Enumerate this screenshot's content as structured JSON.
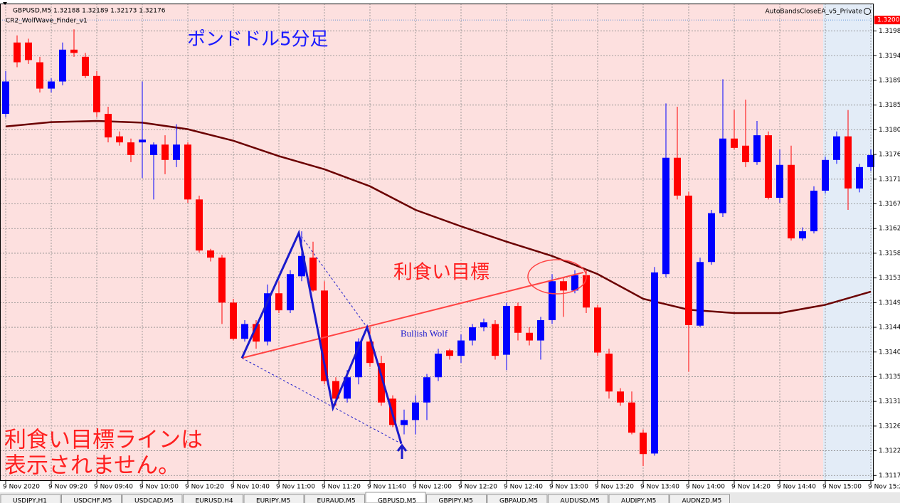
{
  "chart_data": {
    "type": "candlestick",
    "header": "GBPUSD,M5  1.32188 1.32189 1.32173 1.32176",
    "indicator_label": "CR2_WolfWave_Finder_v1",
    "ea_label": "AutoBandsCloseEA_v5_Private",
    "title": "ポンドドル5分足",
    "target_label": "利食い目標",
    "pattern_label": "Bullish Wolf",
    "note_lines": [
      "利食い目標ラインは",
      "表示されません。"
    ],
    "categories": [
      "9 Nov 2020",
      null,
      null,
      null,
      "9 Nov 09:20",
      null,
      null,
      null,
      "9 Nov 09:40",
      null,
      null,
      null,
      "9 Nov 10:00",
      null,
      null,
      null,
      "9 Nov 10:20",
      null,
      null,
      null,
      "9 Nov 10:40",
      null,
      null,
      null,
      "9 Nov 11:00",
      null,
      null,
      null,
      "9 Nov 11:20",
      null,
      null,
      null,
      "9 Nov 11:40",
      null,
      null,
      null,
      "9 Nov 12:00",
      null,
      null,
      null,
      "9 Nov 12:20",
      null,
      null,
      null,
      "9 Nov 12:40",
      null,
      null,
      null,
      "9 Nov 13:00",
      null,
      null,
      null,
      "9 Nov 13:20",
      null,
      null,
      null,
      "9 Nov 13:40",
      null,
      null,
      null,
      "9 Nov 14:00",
      null,
      null,
      null,
      "9 Nov 14:20",
      null,
      null,
      null,
      "9 Nov 14:40",
      null,
      null,
      null,
      "9 Nov 15:00",
      null,
      null,
      null,
      "9 Nov 15:2"
    ],
    "open": [
      1.31829,
      1.31959,
      1.31959,
      1.31923,
      1.31875,
      1.31888,
      1.31946,
      1.31933,
      1.31898,
      1.31829,
      1.31788,
      1.31777,
      1.31777,
      1.31754,
      1.31773,
      1.31745,
      1.31773,
      1.31673,
      1.3158,
      1.31567,
      1.31485,
      1.31419,
      1.31446,
      1.31414,
      1.31502,
      1.31471,
      1.31533,
      1.31567,
      1.31507,
      1.31342,
      1.3131,
      1.31349,
      1.31414,
      1.31375,
      1.3131,
      1.31262,
      1.31271,
      1.31303,
      1.31349,
      1.31398,
      1.31388,
      1.31416,
      1.3144,
      1.31446,
      1.3139,
      1.31479,
      1.3143,
      1.31416,
      1.31453,
      1.31524,
      1.31507,
      1.31535,
      1.31476,
      1.31392,
      1.31323,
      1.31303,
      1.31248,
      1.3121,
      1.31537,
      1.31749,
      1.3168,
      1.31443,
      1.31559,
      1.31648,
      1.31784,
      1.31771,
      1.31741,
      1.3179,
      1.31676,
      1.31736,
      1.31602,
      1.31615,
      1.31689,
      1.31745,
      1.31788,
      1.31693,
      1.31732
    ],
    "high": [
      1.31907,
      1.31972,
      1.31966,
      1.31933,
      1.31894,
      1.31959,
      1.31983,
      1.3194,
      1.31907,
      1.31842,
      1.31797,
      1.31784,
      1.31888,
      1.31777,
      1.3179,
      1.3181,
      1.31777,
      1.3168,
      1.31583,
      1.31572,
      1.31492,
      1.31453,
      1.31453,
      1.31518,
      1.31524,
      1.31544,
      1.31615,
      1.31596,
      1.31524,
      1.31349,
      1.31362,
      1.3142,
      1.3144,
      1.31388,
      1.31316,
      1.3129,
      1.31316,
      1.31355,
      1.31401,
      1.31401,
      1.31427,
      1.31446,
      1.31456,
      1.31453,
      1.31485,
      1.31485,
      1.3144,
      1.31459,
      1.31537,
      1.31531,
      1.31544,
      1.31544,
      1.31481,
      1.31401,
      1.31329,
      1.31323,
      1.31254,
      1.3155,
      1.31848,
      1.31842,
      1.31687,
      1.31567,
      1.31654,
      1.31892,
      1.31836,
      1.31855,
      1.31816,
      1.31797,
      1.31764,
      1.31771,
      1.31622,
      1.31697,
      1.31751,
      1.31797,
      1.31836,
      1.31738,
      1.31764
    ],
    "low": [
      1.31823,
      1.31914,
      1.3192,
      1.31868,
      1.31868,
      1.31881,
      1.31933,
      1.31894,
      1.31823,
      1.31777,
      1.31771,
      1.31741,
      1.31712,
      1.31673,
      1.31719,
      1.31732,
      1.31667,
      1.31576,
      1.3156,
      1.31446,
      1.31416,
      1.31414,
      1.31401,
      1.31407,
      1.31466,
      1.31466,
      1.31524,
      1.31505,
      1.31336,
      1.31297,
      1.31303,
      1.31336,
      1.31368,
      1.31297,
      1.31258,
      1.31245,
      1.31245,
      1.31271,
      1.31342,
      1.31381,
      1.31375,
      1.31407,
      1.31433,
      1.31381,
      1.31362,
      1.31416,
      1.31407,
      1.31381,
      1.31446,
      1.31459,
      1.31502,
      1.31466,
      1.31388,
      1.3131,
      1.31297,
      1.31245,
      1.31187,
      1.31206,
      1.31531,
      1.31673,
      1.31359,
      1.3144,
      1.31554,
      1.31641,
      1.31764,
      1.31732,
      1.31736,
      1.31673,
      1.31667,
      1.31598,
      1.31598,
      1.31611,
      1.31684,
      1.31738,
      1.31654,
      1.31686,
      1.31725
    ],
    "close": [
      1.31888,
      1.31923,
      1.31927,
      1.31875,
      1.31888,
      1.31946,
      1.3194,
      1.31898,
      1.31832,
      1.31786,
      1.31777,
      1.31754,
      1.31782,
      1.31773,
      1.31745,
      1.31773,
      1.31673,
      1.3158,
      1.31567,
      1.31485,
      1.31419,
      1.31446,
      1.31414,
      1.31502,
      1.31471,
      1.31537,
      1.3157,
      1.31507,
      1.31342,
      1.3131,
      1.31349,
      1.31414,
      1.31375,
      1.31303,
      1.31262,
      1.31271,
      1.31303,
      1.31349,
      1.31392,
      1.31388,
      1.31416,
      1.3144,
      1.31449,
      1.31388,
      1.31479,
      1.3143,
      1.31416,
      1.31453,
      1.31524,
      1.31507,
      1.31535,
      1.31476,
      1.31394,
      1.31323,
      1.31303,
      1.31248,
      1.31209,
      1.3154,
      1.31749,
      1.3168,
      1.31444,
      1.31559,
      1.31648,
      1.31784,
      1.31767,
      1.31741,
      1.3179,
      1.31676,
      1.31736,
      1.31602,
      1.31615,
      1.31689,
      1.31745,
      1.31788,
      1.31693,
      1.31732,
      1.31754
    ],
    "up_color": "#0000ff",
    "down_color": "#ff0000",
    "xlim": [
      -0.5,
      76.25
    ],
    "ylim": [
      1.3116,
      1.3203
    ],
    "yticks": [
      1.3198,
      {
        "value": 1.31935,
        "label": "1.3194"
      },
      1.3189,
      {
        "value": 1.31845,
        "label": "1.3185"
      },
      {
        "value": 1.318,
        "label": "1.3180"
      },
      {
        "value": 1.31755,
        "label": "1.3176"
      },
      1.3171,
      {
        "value": 1.31665,
        "label": "1.3167"
      },
      1.3162,
      {
        "value": 1.31575,
        "label": "1.3158"
      },
      1.3153,
      {
        "value": 1.31485,
        "label": "1.3149"
      },
      1.3144,
      {
        "value": 1.31395,
        "label": "1.3140"
      },
      1.3135,
      {
        "value": 1.31305,
        "label": "1.3131"
      },
      1.3126,
      {
        "value": 1.31215,
        "label": "1.3122"
      },
      1.3117
    ],
    "grid": true,
    "price_marker": {
      "value": 1.32,
      "label": "1.3200"
    },
    "overlay": {
      "color": "#6b0000",
      "x": [
        0,
        4,
        8,
        12,
        16,
        20,
        24,
        28,
        32,
        36,
        40,
        44,
        48,
        52,
        56,
        60,
        64,
        68,
        72,
        76
      ],
      "values": [
        1.31806,
        1.31814,
        1.31816,
        1.31813,
        1.31801,
        1.3178,
        1.31752,
        1.31728,
        1.31697,
        1.31654,
        1.31624,
        1.31596,
        1.3157,
        1.31537,
        1.31492,
        1.31472,
        1.31466,
        1.31466,
        1.31481,
        1.31505
      ]
    },
    "wolf_wave": {
      "color": "#1a1acc",
      "x": [
        20.75,
        25.75,
        28.75,
        31.75,
        34.75
      ],
      "values": [
        1.31384,
        1.31612,
        1.31293,
        1.3144,
        1.31228
      ]
    },
    "target_line": {
      "color": "#ff4444",
      "x": [
        20.75,
        50.75
      ],
      "values": [
        1.31384,
        1.3154
      ]
    },
    "tabs": [
      "USDJPY,H1",
      "USDCHF,M5",
      "USDCAD,M5",
      "EURUSD,H4",
      "EURJPY,M5",
      "EURAUD,M5",
      "GBPUSD,M5",
      "GBPJPY,M5",
      "GBPAUD,M5",
      "AUDUSD,M5",
      "AUDJPY,M5",
      "AUDNZD,M5"
    ],
    "active_tab": 6
  }
}
